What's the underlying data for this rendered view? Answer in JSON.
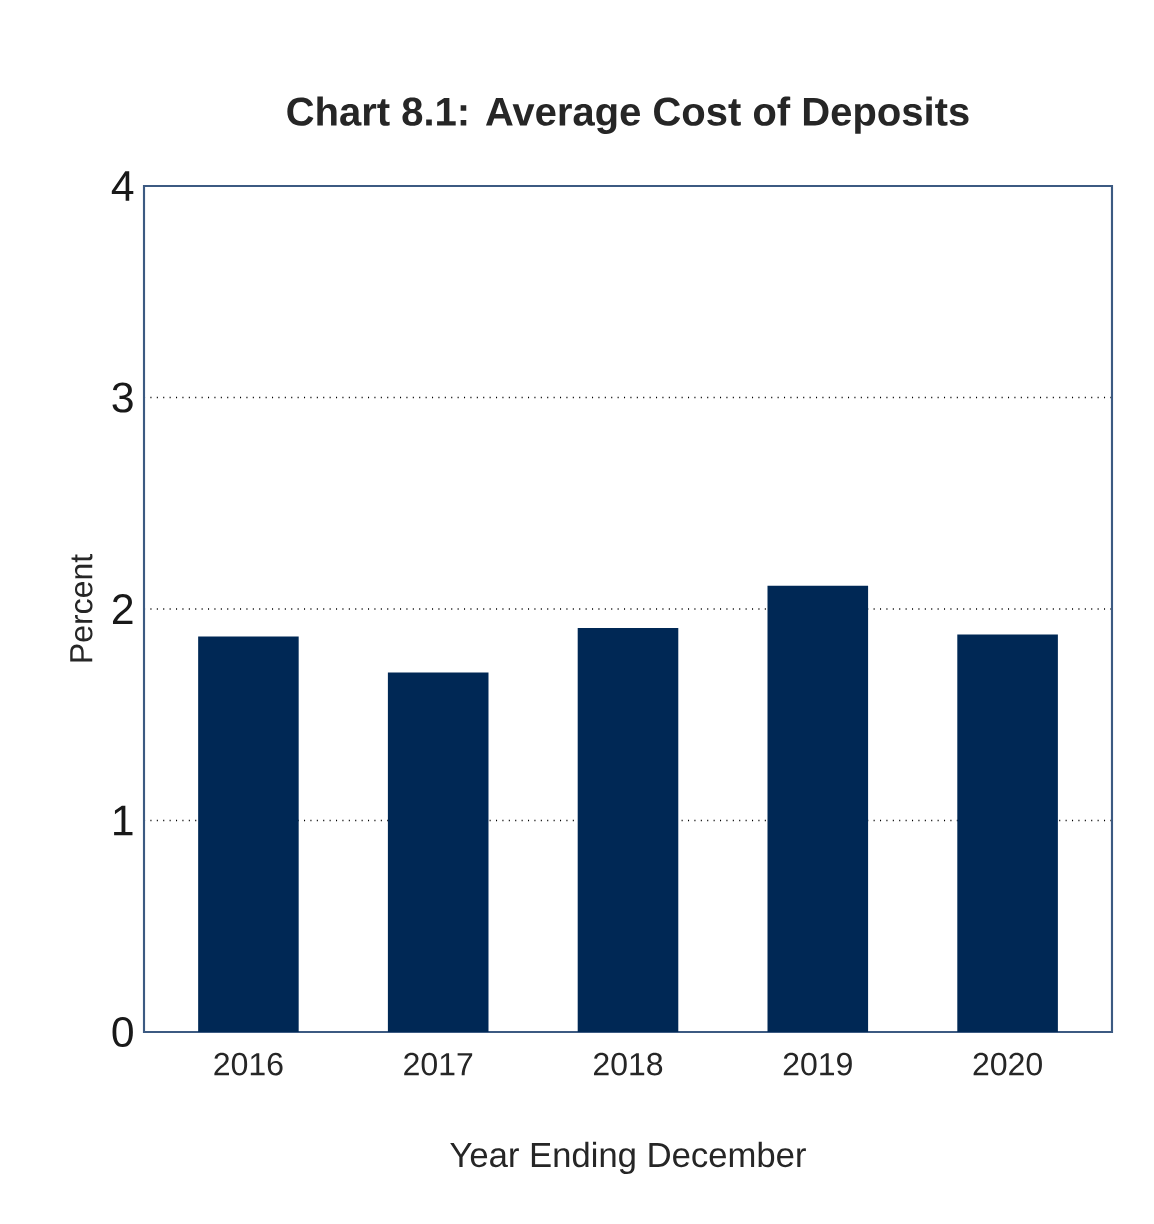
{
  "chart_data": {
    "type": "bar",
    "title": "Chart 8.1: Average Cost of Deposits",
    "xlabel": "Year Ending December",
    "ylabel": "Percent",
    "categories": [
      "2016",
      "2017",
      "2018",
      "2019",
      "2020"
    ],
    "values": [
      1.87,
      1.7,
      1.91,
      2.11,
      1.88
    ],
    "color": "#002855",
    "ylim": [
      0,
      4
    ],
    "yticks": [
      0,
      1,
      2,
      3,
      4
    ],
    "grid": "y"
  }
}
